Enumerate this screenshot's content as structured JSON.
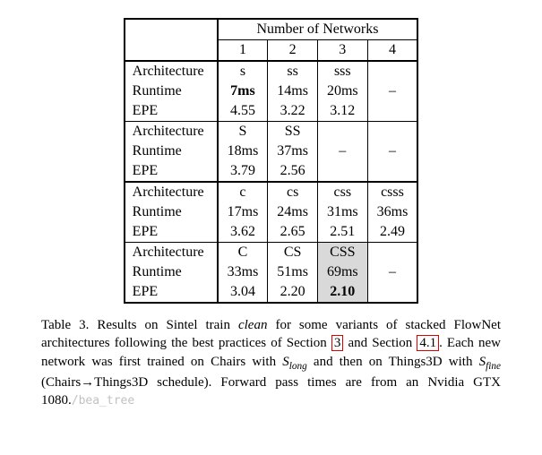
{
  "header": {
    "super": "Number of Networks",
    "cols": [
      "1",
      "2",
      "3",
      "4"
    ]
  },
  "blocks": [
    {
      "rows": [
        {
          "label": "Architecture",
          "cells": [
            "s",
            "ss",
            "sss",
            "–"
          ]
        },
        {
          "label": "Runtime",
          "cells": [
            "7ms",
            "14ms",
            "20ms",
            "–"
          ],
          "bold": [
            0
          ]
        },
        {
          "label": "EPE",
          "cells": [
            "4.55",
            "3.22",
            "3.12",
            ""
          ]
        }
      ]
    },
    {
      "rows": [
        {
          "label": "Architecture",
          "cells": [
            "S",
            "SS",
            "",
            ""
          ]
        },
        {
          "label": "Runtime",
          "cells": [
            "18ms",
            "37ms",
            "–",
            "–"
          ]
        },
        {
          "label": "EPE",
          "cells": [
            "3.79",
            "2.56",
            "",
            ""
          ]
        }
      ]
    },
    {
      "rows": [
        {
          "label": "Architecture",
          "cells": [
            "c",
            "cs",
            "css",
            "csss"
          ]
        },
        {
          "label": "Runtime",
          "cells": [
            "17ms",
            "24ms",
            "31ms",
            "36ms"
          ]
        },
        {
          "label": "EPE",
          "cells": [
            "3.62",
            "2.65",
            "2.51",
            "2.49"
          ]
        }
      ]
    },
    {
      "rows": [
        {
          "label": "Architecture",
          "cells": [
            "C",
            "CS",
            "CSS",
            ""
          ],
          "hl": [
            2
          ]
        },
        {
          "label": "Runtime",
          "cells": [
            "33ms",
            "51ms",
            "69ms",
            "–"
          ],
          "hl": [
            2
          ]
        },
        {
          "label": "EPE",
          "cells": [
            "3.04",
            "2.20",
            "2.10",
            ""
          ],
          "hl": [
            2
          ],
          "bold": [
            2
          ]
        }
      ]
    }
  ],
  "dash_row_indices": {
    "1": [
      1
    ],
    "3": [
      1
    ]
  },
  "caption": {
    "lead": "Table 3. Results on Sintel train ",
    "clean": "clean",
    "after_clean": " for some variants of stacked FlowNet architectures following the best practices of Section ",
    "ref1": "3",
    "mid": " and Section ",
    "ref2": "4.1",
    "after_ref2_a": ".  Each new network was first trained on Chairs with ",
    "slong": "S",
    "slong_sub": "long",
    "after_slong": " and then on Things3D with ",
    "sfine": "S",
    "sfine_sub": "fine",
    "after_sfine": " (Chairs→Things3D schedule).  Forward pass times are from an Nvidia GTX 1080.",
    "watermark": "/bea_tree"
  }
}
